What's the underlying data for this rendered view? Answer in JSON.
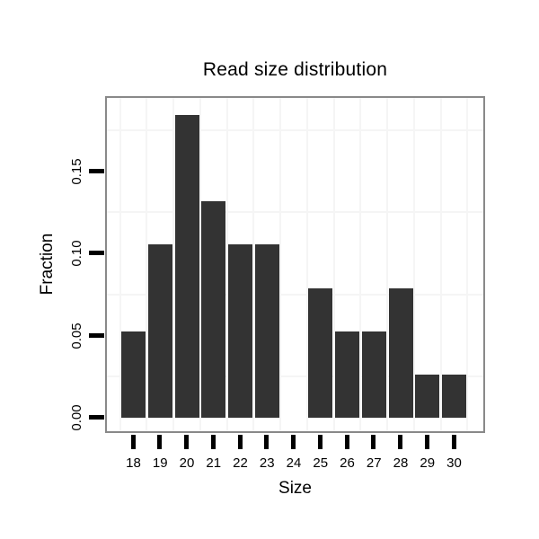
{
  "chart_data": {
    "type": "bar",
    "title": "Read size distribution",
    "xlabel": "Size",
    "ylabel": "Fraction",
    "categories": [
      18,
      19,
      20,
      21,
      22,
      23,
      24,
      25,
      26,
      27,
      28,
      29,
      30
    ],
    "values": [
      0.0526,
      0.1053,
      0.1842,
      0.1316,
      0.1053,
      0.1053,
      0,
      0.0789,
      0.0526,
      0.0526,
      0.0789,
      0.0263,
      0.0263
    ],
    "yticks": [
      0,
      0.05,
      0.1,
      0.15
    ],
    "ytick_labels": [
      "0.00",
      "0.05",
      "0.10",
      "0.15"
    ],
    "ylim": [
      -0.009,
      0.195
    ],
    "grid": "faint minor gridlines on white panel",
    "legend": "none",
    "colors": {
      "bar": "#333333",
      "panel_border": "#898989",
      "gridline": "#f5f5f5",
      "axis_tick": "#000000",
      "text": "#000000",
      "background": "#ffffff"
    }
  }
}
